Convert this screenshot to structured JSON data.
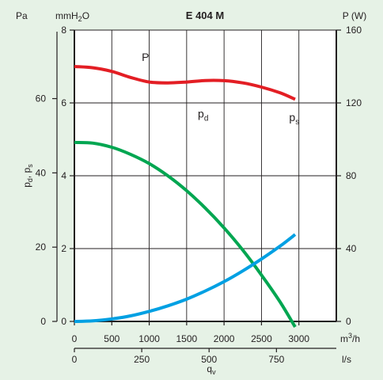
{
  "chart_data": {
    "type": "line",
    "title": "E 404 M",
    "background": "#e6f2e6",
    "plot_background": "#ffffff",
    "left_axis": {
      "pa_label": "Pa",
      "mm_label": "mmH",
      "mm_sub": "2",
      "mm_suffix": "O",
      "side_label": "p",
      "side_sub1": "d",
      "side_sep": ", p",
      "side_sub2": "s",
      "pa_ticks": [
        "0",
        "20",
        "40",
        "60"
      ],
      "pa_ylim": [
        0,
        78.45
      ],
      "mm_ticks": [
        "0",
        "2",
        "4",
        "6",
        "8"
      ],
      "mm_ylim": [
        0,
        8
      ]
    },
    "right_axis": {
      "label": "P (W)",
      "ticks": [
        "0",
        "40",
        "80",
        "120",
        "160"
      ],
      "ylim": [
        0,
        160
      ]
    },
    "x_axis": {
      "unit": "m",
      "unit_sup": "3",
      "unit_suffix": "/h",
      "ticks": [
        "0",
        "500",
        "1000",
        "1500",
        "2000",
        "2500",
        "3000"
      ],
      "xlim": [
        0,
        3500
      ]
    },
    "x_axis2": {
      "unit": "l/s",
      "ticks": [
        "0",
        "250",
        "500",
        "750"
      ],
      "tick_values_m3h": [
        0,
        900,
        1800,
        2700
      ],
      "label": "q",
      "label_sub": "v"
    },
    "series": [
      {
        "name": "P",
        "axis": "right_W",
        "color": "#e31e24",
        "label_at": [
          900,
          143
        ],
        "x": [
          0,
          250,
          500,
          750,
          1000,
          1250,
          1500,
          1750,
          2000,
          2250,
          2500,
          2750,
          2950
        ],
        "y": [
          140,
          139.3,
          137.3,
          134,
          131.5,
          131,
          131.5,
          132.3,
          132.2,
          131,
          128.7,
          125.5,
          122
        ]
      },
      {
        "name": "p",
        "sub": "s",
        "axis": "left_Pa",
        "color": "#00a651",
        "label_at": [
          2870,
          5.5
        ],
        "x": [
          0,
          250,
          500,
          750,
          1000,
          1250,
          1500,
          1750,
          2000,
          2250,
          2500,
          2750,
          2950
        ],
        "y": [
          48.2,
          48.0,
          46.9,
          45.0,
          42.5,
          39.2,
          35.2,
          30.5,
          25.2,
          19.2,
          12.5,
          5.2,
          -1.5
        ]
      },
      {
        "name": "p",
        "sub": "d",
        "axis": "left_Pa",
        "color": "#00a0e3",
        "label_at": [
          1650,
          5.6
        ],
        "x": [
          0,
          250,
          500,
          750,
          1000,
          1250,
          1500,
          1750,
          2000,
          2250,
          2500,
          2750,
          2950
        ],
        "y": [
          0,
          0.17,
          0.67,
          1.5,
          2.7,
          4.2,
          6.0,
          8.2,
          10.7,
          13.6,
          16.8,
          20.3,
          23.4
        ]
      }
    ]
  }
}
